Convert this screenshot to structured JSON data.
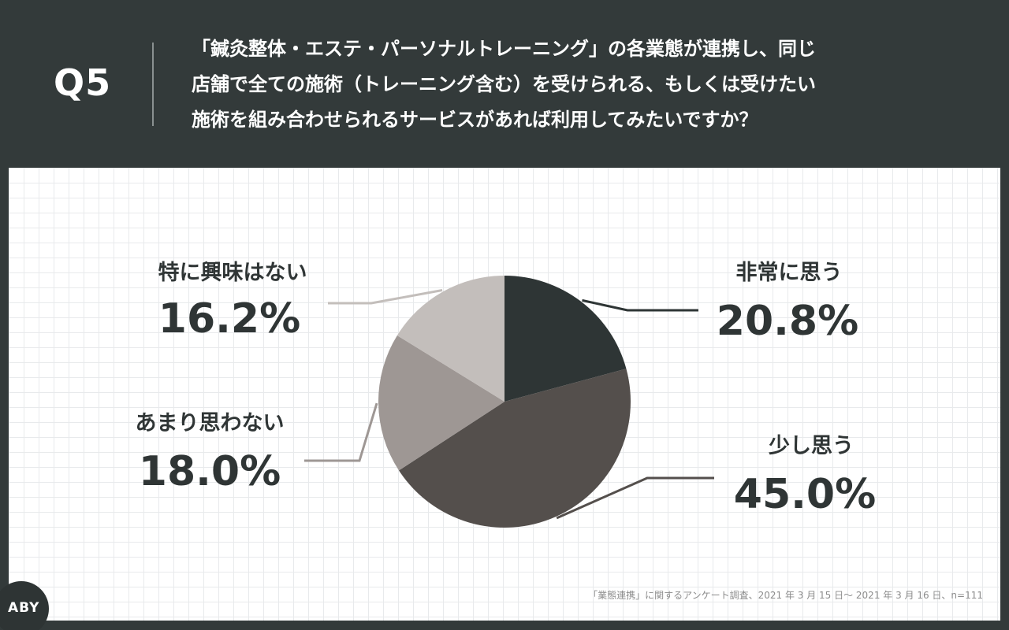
{
  "header": {
    "question_no": "Q5",
    "question_lines": [
      "「鍼灸整体・エステ・パーソナルトレーニング」の各業態が連携し、同じ",
      "店舗で全ての施術（トレーニング含む）を受けられる、もしくは受けたい",
      "施術を組み合わせられるサービスがあれば利用してみたいですか？"
    ]
  },
  "chart_data": {
    "type": "pie",
    "categories": [
      "非常に思う",
      "少し思う",
      "あまり思わない",
      "特に興味はない"
    ],
    "values": [
      20.8,
      45.0,
      18.0,
      16.2
    ],
    "value_labels": [
      "20.8%",
      "45.0%",
      "18.0%",
      "16.2%"
    ],
    "colors": [
      "#2e3535",
      "#544f4c",
      "#9e9794",
      "#c3bebb"
    ],
    "start": "12 o'clock",
    "direction": "clockwise"
  },
  "footer": {
    "source": "「業態連携」に関するアンケート調査、2021 年 3 月 15 日〜 2021 年 3 月 16 日、n=111",
    "logo": "ABY"
  }
}
